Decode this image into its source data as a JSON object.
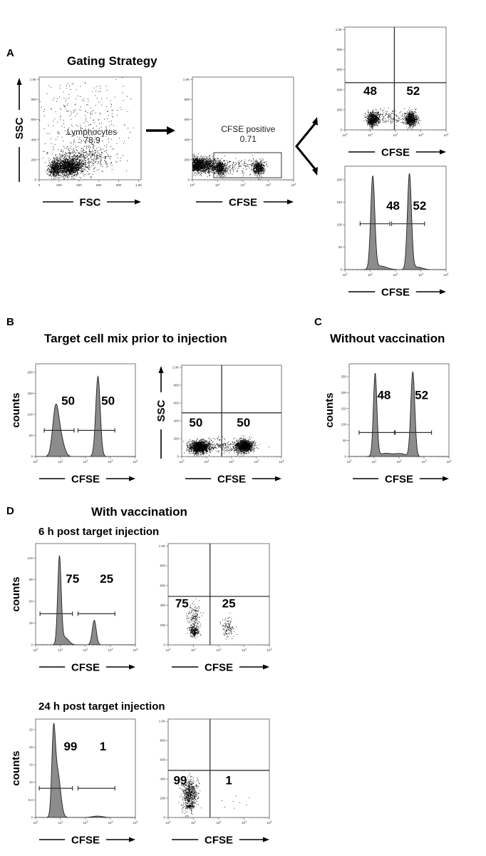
{
  "figure": {
    "panels": [
      {
        "letter": "A",
        "title": "Gating Strategy"
      },
      {
        "letter": "B",
        "title": "Target cell mix prior to injection"
      },
      {
        "letter": "C",
        "title": "Without vaccination"
      },
      {
        "letter": "D",
        "title": "With vaccination"
      }
    ],
    "subtitles": [
      "6 h post target injection",
      "24 h post target injection"
    ],
    "colors": {
      "histogram_fill": "#8c8c8c",
      "line": "#222222",
      "dots": "#000000"
    }
  },
  "chart_data": [
    {
      "type": "scatter",
      "panel": "A",
      "xlabel": "FSC",
      "ylabel": "SSC",
      "xscale": "linear",
      "xlim": [
        0,
        1024
      ],
      "ylim": [
        0,
        1024
      ],
      "xticks": [
        0,
        200,
        400,
        600,
        800,
        1000
      ],
      "xtick_labels": [
        "0",
        "200",
        "400",
        "600",
        "800",
        "1.0K"
      ],
      "yticks": [
        0,
        200,
        400,
        600,
        800,
        1000
      ],
      "ytick_labels": [
        "0",
        "200",
        "400",
        "600",
        "800",
        "1.0K"
      ],
      "populations": [
        {
          "x": 150,
          "y": 110,
          "x_sd": 30,
          "y_sd": 40,
          "n": 500
        },
        {
          "x": 300,
          "y": 130,
          "x_sd": 70,
          "y_sd": 45,
          "n": 1400
        },
        {
          "x": 420,
          "y": 220,
          "x_sd": 150,
          "y_sd": 60,
          "n": 500
        },
        {
          "x": 450,
          "y": 560,
          "x_sd": 250,
          "y_sd": 230,
          "n": 350
        }
      ],
      "annotations": [
        {
          "text": "Lymphocytes",
          "x": 530,
          "y": 470,
          "bold": false
        },
        {
          "text": "78.9",
          "x": 530,
          "y": 390,
          "bold": false
        }
      ]
    },
    {
      "type": "scatter",
      "panel": "A",
      "xlabel": "CFSE",
      "xscale": "log",
      "xlim": [
        1,
        10000
      ],
      "ylim": [
        0,
        1024
      ],
      "xtick_exponents": [
        0,
        1,
        2,
        3,
        4
      ],
      "yticks": [
        0,
        200,
        400,
        600,
        800,
        1000
      ],
      "ytick_labels": [
        "0",
        "200",
        "400",
        "600",
        "800",
        "1.0K"
      ],
      "populations": [
        {
          "x": 1.6,
          "y": 150,
          "x_sd": 0.3,
          "y_sd": 35,
          "n": 1600
        },
        {
          "x": 5,
          "y": 140,
          "x_sd": 0.3,
          "y_sd": 40,
          "n": 250
        },
        {
          "x": 12.6,
          "y": 120,
          "x_sd": 0.12,
          "y_sd": 35,
          "n": 500
        },
        {
          "x": 60,
          "y": 140,
          "x_sd": 0.45,
          "y_sd": 40,
          "n": 150
        },
        {
          "x": 400,
          "y": 120,
          "x_sd": 0.12,
          "y_sd": 35,
          "n": 500
        }
      ],
      "gate_rect": {
        "x": [
          7,
          3300
        ],
        "y": [
          20,
          270
        ]
      },
      "annotations": [
        {
          "text": "CFSE positive",
          "x": 160,
          "y": 500,
          "bold": false
        },
        {
          "text": "0.71",
          "x": 160,
          "y": 400,
          "bold": false
        }
      ]
    },
    {
      "type": "scatter",
      "panel": "A",
      "xlabel": "CFSE",
      "xscale": "log",
      "xlim": [
        1,
        10000
      ],
      "ylim": [
        0,
        1024
      ],
      "xtick_exponents": [
        0,
        1,
        2,
        3,
        4
      ],
      "yticks": [
        0,
        200,
        400,
        600,
        800,
        1000
      ],
      "ytick_labels": [
        "0",
        "200",
        "400",
        "600",
        "800",
        "1.0K"
      ],
      "populations": [
        {
          "x": 12.6,
          "y": 110,
          "x_sd": 0.12,
          "y_sd": 35,
          "n": 700
        },
        {
          "x": 60,
          "y": 130,
          "x_sd": 0.35,
          "y_sd": 40,
          "n": 150
        },
        {
          "x": 400,
          "y": 110,
          "x_sd": 0.12,
          "y_sd": 35,
          "n": 700
        }
      ],
      "quadrant": {
        "x": 90,
        "y": 470
      },
      "annotations": [
        {
          "text": "48",
          "x": 10,
          "y": 380,
          "bold": true
        },
        {
          "text": "52",
          "x": 500,
          "y": 380,
          "bold": true
        }
      ]
    },
    {
      "type": "histogram",
      "panel": "A",
      "xlabel": "CFSE",
      "xscale": "log",
      "xlim": [
        1,
        10000
      ],
      "ylim": [
        0,
        230
      ],
      "xtick_exponents": [
        0,
        1,
        2,
        3,
        4
      ],
      "yticks": [
        0,
        50,
        100,
        150,
        200
      ],
      "ytick_labels": [
        "0",
        "50",
        "100",
        "150",
        "200"
      ],
      "peaks": [
        {
          "x": 12.6,
          "h": 205,
          "sd": 0.08
        },
        {
          "x": 25,
          "h": 8,
          "sd": 0.25
        },
        {
          "x": 355,
          "h": 212,
          "sd": 0.08
        },
        {
          "x": 700,
          "h": 6,
          "sd": 0.2
        }
      ],
      "gates": [
        {
          "x": [
            4,
            60
          ],
          "y": 102
        },
        {
          "x": [
            70,
            1400
          ],
          "y": 102
        }
      ],
      "annotations": [
        {
          "text": "48",
          "x": 80,
          "y": 140,
          "bold": true
        },
        {
          "text": "52",
          "x": 900,
          "y": 140,
          "bold": true
        }
      ]
    },
    {
      "type": "histogram",
      "panel": "B",
      "xlabel": "CFSE",
      "ylabel": "counts",
      "xscale": "log",
      "xlim": [
        1,
        10000
      ],
      "ylim": [
        0,
        220
      ],
      "xtick_exponents": [
        0,
        1,
        2,
        3,
        4
      ],
      "yticks": [
        0,
        50,
        100,
        150,
        200
      ],
      "ytick_labels": [
        "0",
        "50",
        "100",
        "150",
        "200"
      ],
      "peaks": [
        {
          "x": 6.3,
          "h": 108,
          "sd": 0.12
        },
        {
          "x": 10,
          "h": 42,
          "sd": 0.14
        },
        {
          "x": 316,
          "h": 190,
          "sd": 0.09
        }
      ],
      "gates": [
        {
          "x": [
            2.2,
            35
          ],
          "y": 62
        },
        {
          "x": [
            50,
            1500
          ],
          "y": 62
        }
      ],
      "annotations": [
        {
          "text": "50",
          "x": 20,
          "y": 130,
          "bold": true
        },
        {
          "text": "50",
          "x": 800,
          "y": 130,
          "bold": true
        }
      ]
    },
    {
      "type": "scatter",
      "panel": "B",
      "xlabel": "CFSE",
      "ylabel": "SSC",
      "xscale": "log",
      "xlim": [
        1,
        10000
      ],
      "ylim": [
        0,
        1024
      ],
      "xtick_exponents": [
        0,
        1,
        2,
        3,
        4
      ],
      "yticks": [
        0,
        200,
        400,
        600,
        800,
        1000
      ],
      "ytick_labels": [
        "0",
        "200",
        "400",
        "600",
        "800",
        "1.0K"
      ],
      "populations": [
        {
          "x": 5,
          "y": 110,
          "x_sd": 0.2,
          "y_sd": 35,
          "n": 1400
        },
        {
          "x": 40,
          "y": 120,
          "x_sd": 0.4,
          "y_sd": 40,
          "n": 200
        },
        {
          "x": 316,
          "y": 120,
          "x_sd": 0.18,
          "y_sd": 35,
          "n": 1200
        }
      ],
      "quadrant": {
        "x": 40,
        "y": 490
      },
      "annotations": [
        {
          "text": "50",
          "x": 3.7,
          "y": 370,
          "bold": true
        },
        {
          "text": "50",
          "x": 300,
          "y": 370,
          "bold": true
        }
      ]
    },
    {
      "type": "histogram",
      "panel": "C",
      "xlabel": "CFSE",
      "ylabel": "counts",
      "xscale": "log",
      "xlim": [
        1,
        10000
      ],
      "ylim": [
        0,
        290
      ],
      "xtick_exponents": [
        0,
        1,
        2,
        3,
        4
      ],
      "yticks": [
        0,
        50,
        100,
        150,
        200,
        250
      ],
      "ytick_labels": [
        "0",
        "50",
        "100",
        "150",
        "200",
        "250"
      ],
      "peaks": [
        {
          "x": 11,
          "h": 258,
          "sd": 0.07
        },
        {
          "x": 30,
          "h": 10,
          "sd": 0.3
        },
        {
          "x": 120,
          "h": 8,
          "sd": 0.2
        },
        {
          "x": 355,
          "h": 265,
          "sd": 0.08
        }
      ],
      "gates": [
        {
          "x": [
            2.5,
            65
          ],
          "y": 75
        },
        {
          "x": [
            70,
            2000
          ],
          "y": 75
        }
      ],
      "annotations": [
        {
          "text": "48",
          "x": 25,
          "y": 190,
          "bold": true
        },
        {
          "text": "52",
          "x": 800,
          "y": 190,
          "bold": true
        }
      ]
    },
    {
      "type": "histogram",
      "panel": "D",
      "subtitle": "6 h post target injection",
      "xlabel": "CFSE",
      "ylabel": "counts",
      "xscale": "log",
      "xlim": [
        1,
        10000
      ],
      "ylim": [
        0,
        140
      ],
      "xtick_exponents": [
        0,
        1,
        2,
        3,
        4
      ],
      "yticks": [
        0,
        30,
        60,
        90,
        120
      ],
      "ytick_labels": [
        "0",
        "30",
        "60",
        "90",
        "120"
      ],
      "peaks": [
        {
          "x": 9,
          "h": 120,
          "sd": 0.07
        },
        {
          "x": 15,
          "h": 10,
          "sd": 0.15
        },
        {
          "x": 224,
          "h": 34,
          "sd": 0.08
        }
      ],
      "gates": [
        {
          "x": [
            1.5,
            30
          ],
          "y": 43
        },
        {
          "x": [
            50,
            1500
          ],
          "y": 43
        }
      ],
      "annotations": [
        {
          "text": "75",
          "x": 30,
          "y": 90,
          "bold": true
        },
        {
          "text": "25",
          "x": 700,
          "y": 90,
          "bold": true
        }
      ]
    },
    {
      "type": "scatter",
      "panel": "D",
      "subtitle": "6 h post target injection",
      "xlabel": "CFSE",
      "xscale": "log",
      "xlim": [
        1,
        10000
      ],
      "ylim": [
        0,
        1024
      ],
      "xtick_exponents": [
        0,
        1,
        2,
        3,
        4
      ],
      "yticks": [
        0,
        200,
        400,
        600,
        800,
        1000
      ],
      "ytick_labels": [
        "0",
        "200",
        "400",
        "600",
        "800",
        "1.0K"
      ],
      "populations": [
        {
          "x": 10,
          "y": 140,
          "x_sd": 0.1,
          "y_sd": 30,
          "n": 220
        },
        {
          "x": 10,
          "y": 280,
          "x_sd": 0.13,
          "y_sd": 70,
          "n": 160
        },
        {
          "x": 224,
          "y": 170,
          "x_sd": 0.12,
          "y_sd": 50,
          "n": 120
        }
      ],
      "quadrant": {
        "x": 45,
        "y": 490
      },
      "annotations": [
        {
          "text": "75",
          "x": 3.5,
          "y": 410,
          "bold": true
        },
        {
          "text": "25",
          "x": 250,
          "y": 410,
          "bold": true
        }
      ]
    },
    {
      "type": "histogram",
      "panel": "D",
      "subtitle": "24 h post target injection",
      "xlabel": "CFSE",
      "ylabel": "counts",
      "xscale": "log",
      "xlim": [
        1,
        10000
      ],
      "ylim": [
        0,
        28
      ],
      "xtick_exponents": [
        0,
        1,
        2,
        3,
        4
      ],
      "yticks": [
        0,
        5,
        10,
        15,
        20,
        25
      ],
      "ytick_labels": [
        "0",
        "5.0",
        "10",
        "15",
        "20",
        "25"
      ],
      "peaks": [
        {
          "x": 5.2,
          "h": 21,
          "sd": 0.07
        },
        {
          "x": 7.5,
          "h": 13,
          "sd": 0.12
        },
        {
          "x": 300,
          "h": 0.4,
          "sd": 0.2
        }
      ],
      "gates": [
        {
          "x": [
            1.4,
            30
          ],
          "y": 8.3
        },
        {
          "x": [
            50,
            1500
          ],
          "y": 8.3
        }
      ],
      "annotations": [
        {
          "text": "99",
          "x": 25,
          "y": 20,
          "bold": true
        },
        {
          "text": "1",
          "x": 500,
          "y": 20,
          "bold": true
        }
      ]
    },
    {
      "type": "scatter",
      "panel": "D",
      "subtitle": "24 h post target injection",
      "xlabel": "CFSE",
      "xscale": "log",
      "xlim": [
        1,
        10000
      ],
      "ylim": [
        0,
        1024
      ],
      "xtick_exponents": [
        0,
        1,
        2,
        3,
        4
      ],
      "yticks": [
        0,
        200,
        400,
        600,
        800,
        1000
      ],
      "ytick_labels": [
        "0",
        "200",
        "400",
        "600",
        "800",
        "1.0K"
      ],
      "populations": [
        {
          "x": 7,
          "y": 250,
          "x_sd": 0.15,
          "y_sd": 80,
          "n": 600
        },
        {
          "x": 7,
          "y": 120,
          "x_sd": 0.1,
          "y_sd": 12,
          "n": 100
        },
        {
          "x": 300,
          "y": 160,
          "x_sd": 0.3,
          "y_sd": 40,
          "n": 8
        }
      ],
      "quadrant": {
        "x": 45,
        "y": 490
      },
      "annotations": [
        {
          "text": "99",
          "x": 3,
          "y": 380,
          "bold": true
        },
        {
          "text": "1",
          "x": 250,
          "y": 380,
          "bold": true
        }
      ]
    }
  ]
}
